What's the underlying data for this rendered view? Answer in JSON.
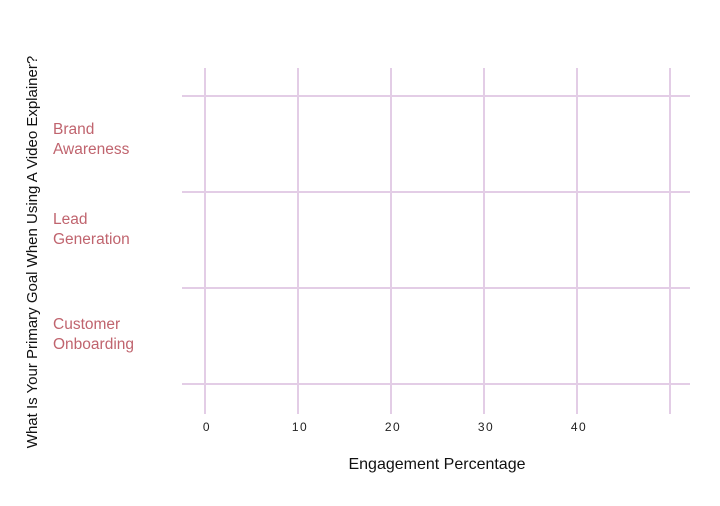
{
  "chart_data": {
    "type": "bar",
    "orientation": "horizontal",
    "categories": [
      "Brand\nAwareness",
      "Lead\nGeneration",
      "Customer\nOnboarding"
    ],
    "series": [
      {
        "values": [
          null,
          null,
          null
        ]
      }
    ],
    "xlabel": "Engagement Percentage",
    "ylabel": "What Is Your Primary Goal When Using A Video Explainer?",
    "xlim": [
      -2.4,
      50
    ],
    "xticks": [
      0,
      10,
      20,
      30,
      40
    ],
    "grid": true,
    "colors": {
      "grid": "#e3cde6",
      "category_label": "#c0646e",
      "text": "#111111"
    }
  }
}
